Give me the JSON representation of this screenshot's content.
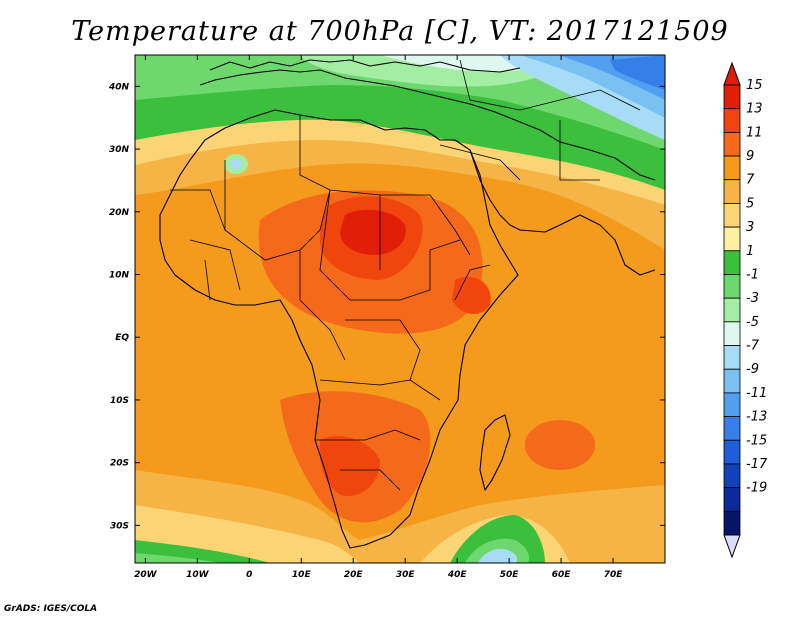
{
  "title": "Temperature at 700hPa [C], VT: 2017121509",
  "footer": "GrADS: IGES/COLA",
  "map": {
    "lon_range": [
      -22,
      80
    ],
    "lat_range": [
      -36,
      45
    ],
    "lon_ticks": [
      {
        "value": -20,
        "label": "20W"
      },
      {
        "value": -10,
        "label": "10W"
      },
      {
        "value": 0,
        "label": "0"
      },
      {
        "value": 10,
        "label": "10E"
      },
      {
        "value": 20,
        "label": "20E"
      },
      {
        "value": 30,
        "label": "30E"
      },
      {
        "value": 40,
        "label": "40E"
      },
      {
        "value": 50,
        "label": "50E"
      },
      {
        "value": 60,
        "label": "60E"
      },
      {
        "value": 70,
        "label": "70E"
      }
    ],
    "lat_ticks": [
      {
        "value": 40,
        "label": "40N"
      },
      {
        "value": 30,
        "label": "30N"
      },
      {
        "value": 20,
        "label": "20N"
      },
      {
        "value": 10,
        "label": "10N"
      },
      {
        "value": 0,
        "label": "EQ"
      },
      {
        "value": -10,
        "label": "10S"
      },
      {
        "value": -20,
        "label": "20S"
      },
      {
        "value": -30,
        "label": "30S"
      }
    ]
  },
  "colorbar": {
    "labels": [
      "15",
      "13",
      "11",
      "9",
      "7",
      "5",
      "3",
      "1",
      "-1",
      "-3",
      "-5",
      "-7",
      "-9",
      "-11",
      "-13",
      "-15",
      "-17",
      "-19"
    ],
    "colors": [
      "#e11e08",
      "#f0460e",
      "#f4691a",
      "#f49a1c",
      "#f5b445",
      "#fad475",
      "#fdf0a0",
      "#3cbf3c",
      "#6ed86e",
      "#a3eea3",
      "#def8f0",
      "#a8dcf6",
      "#7ac0f0",
      "#529ef0",
      "#367ee8",
      "#1f5ed8",
      "#1341bc",
      "#0a2a9a",
      "#081466"
    ],
    "top_arrow_color": "#e11e08",
    "bottom_arrow_color": "#dcdcf8"
  }
}
